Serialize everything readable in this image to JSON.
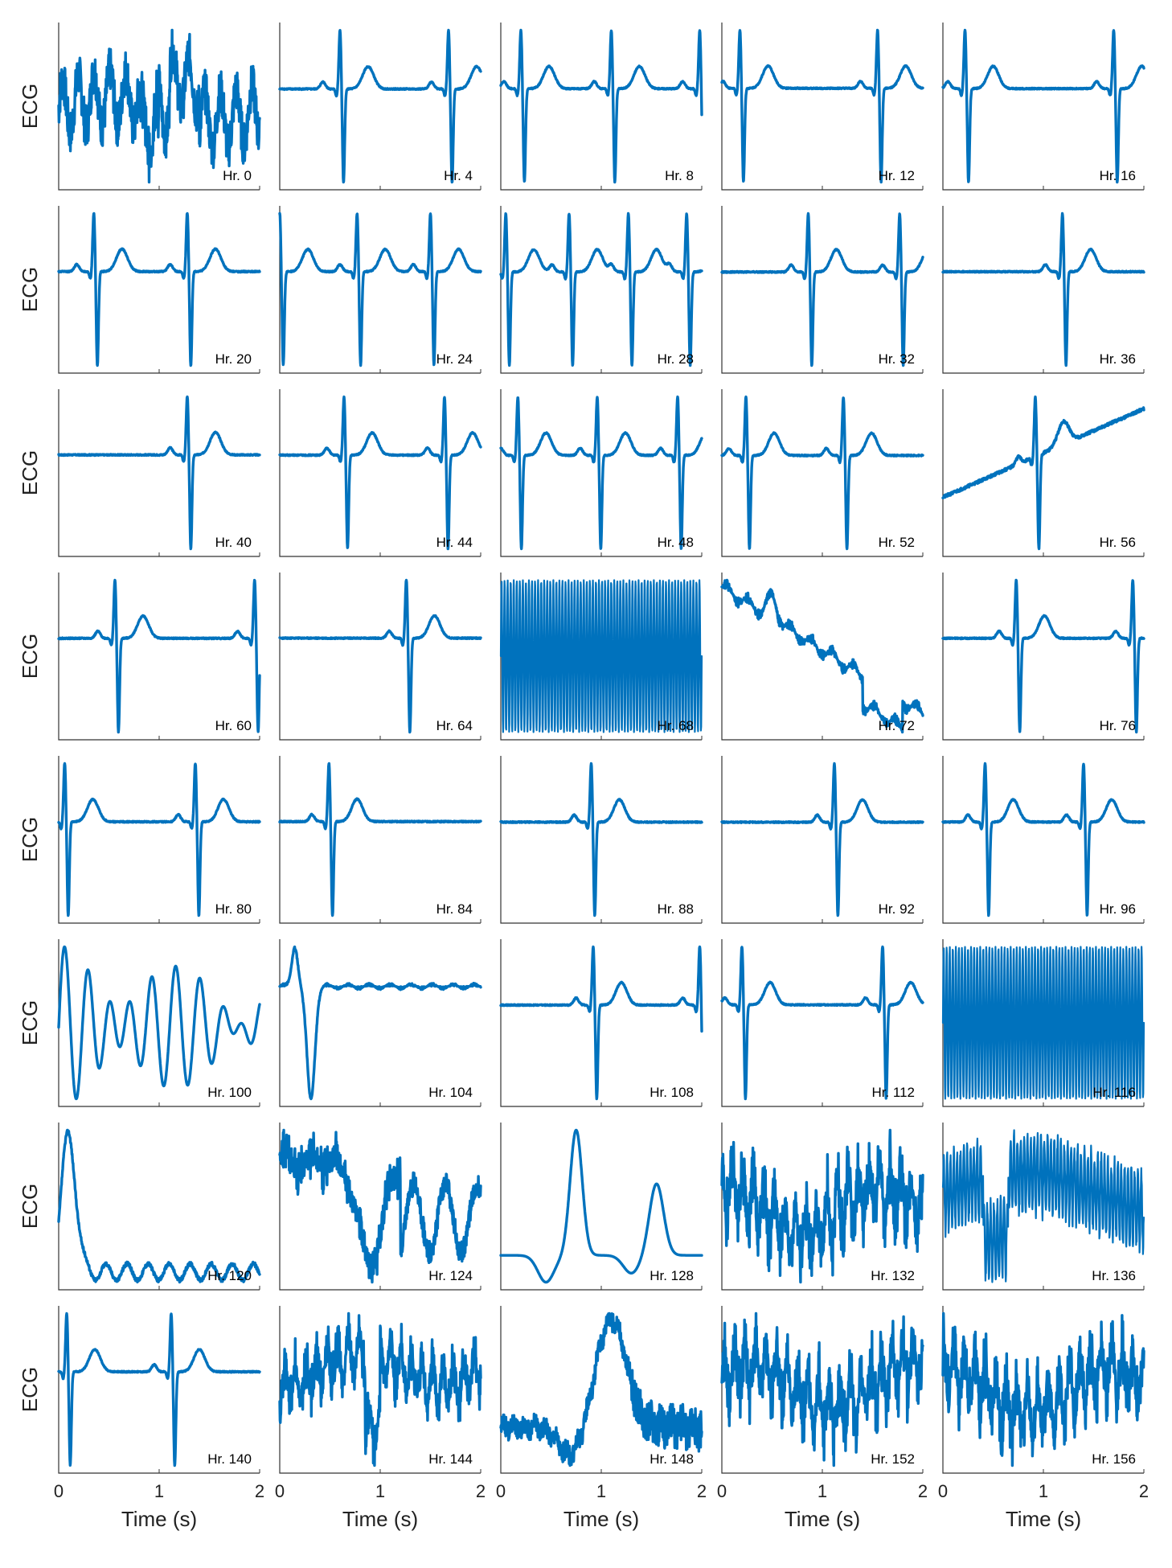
{
  "chart_data": {
    "type": "line",
    "grid": false,
    "colors": {
      "trace": "#0072bd",
      "axes": "#333333"
    },
    "ylabel": "ECG",
    "xlabel": "Time (s)",
    "xlim": [
      0,
      2
    ],
    "xticks": [
      0,
      1,
      2
    ],
    "xtick_labels": [
      "0",
      "1",
      "2"
    ],
    "rows": 8,
    "cols": 5,
    "panels": [
      {
        "label": "Hr. 0",
        "shape": "noise",
        "beats": []
      },
      {
        "label": "Hr. 4",
        "shape": "beats",
        "beats": [
          0.6,
          1.68
        ]
      },
      {
        "label": "Hr. 8",
        "shape": "beats",
        "beats": [
          0.2,
          1.1,
          1.98
        ]
      },
      {
        "label": "Hr. 12",
        "shape": "beats",
        "beats": [
          0.18,
          1.55
        ]
      },
      {
        "label": "Hr. 16",
        "shape": "beats",
        "beats": [
          0.22,
          1.7
        ]
      },
      {
        "label": "Hr. 20",
        "shape": "beats",
        "beats": [
          0.35,
          1.28
        ]
      },
      {
        "label": "Hr. 24",
        "shape": "beats",
        "beats": [
          0.0,
          0.77,
          1.5
        ]
      },
      {
        "label": "Hr. 28",
        "shape": "beats",
        "beats": [
          0.05,
          0.68,
          1.27,
          1.85
        ]
      },
      {
        "label": "Hr. 32",
        "shape": "beats",
        "beats": [
          0.86,
          1.77
        ]
      },
      {
        "label": "Hr. 36",
        "shape": "beats",
        "beats": [
          1.19
        ]
      },
      {
        "label": "Hr. 40",
        "shape": "beats",
        "beats": [
          1.28
        ]
      },
      {
        "label": "Hr. 44",
        "shape": "beats",
        "beats": [
          0.64,
          1.64
        ]
      },
      {
        "label": "Hr. 48",
        "shape": "beats",
        "beats": [
          0.17,
          0.96,
          1.76
        ]
      },
      {
        "label": "Hr. 52",
        "shape": "beats",
        "beats": [
          0.24,
          1.21
        ]
      },
      {
        "label": "Hr. 56",
        "shape": "drift",
        "beats": [
          0.92
        ]
      },
      {
        "label": "Hr. 60",
        "shape": "beats",
        "beats": [
          0.56,
          1.95
        ]
      },
      {
        "label": "Hr. 64",
        "shape": "beats",
        "beats": [
          1.26
        ]
      },
      {
        "label": "Hr. 68",
        "shape": "dense",
        "beats": []
      },
      {
        "label": "Hr. 72",
        "shape": "artifact",
        "beats": []
      },
      {
        "label": "Hr. 76",
        "shape": "beats",
        "beats": [
          0.73,
          1.89
        ]
      },
      {
        "label": "Hr. 80",
        "shape": "beats",
        "beats": [
          0.06,
          1.36
        ]
      },
      {
        "label": "Hr. 84",
        "shape": "beats",
        "beats": [
          0.49
        ]
      },
      {
        "label": "Hr. 88",
        "shape": "beats",
        "beats": [
          0.9
        ]
      },
      {
        "label": "Hr. 92",
        "shape": "beats",
        "beats": [
          1.12
        ]
      },
      {
        "label": "Hr. 96",
        "shape": "beats",
        "beats": [
          0.42,
          1.4
        ]
      },
      {
        "label": "Hr. 100",
        "shape": "wobble",
        "beats": []
      },
      {
        "label": "Hr. 104",
        "shape": "single",
        "beats": [
          0.27
        ]
      },
      {
        "label": "Hr. 108",
        "shape": "beats",
        "beats": [
          0.92,
          1.98
        ]
      },
      {
        "label": "Hr. 112",
        "shape": "beats",
        "beats": [
          0.2,
          1.6
        ]
      },
      {
        "label": "Hr. 116",
        "shape": "dense",
        "beats": []
      },
      {
        "label": "Hr. 120",
        "shape": "spike",
        "beats": []
      },
      {
        "label": "Hr. 124",
        "shape": "noise2",
        "beats": []
      },
      {
        "label": "Hr. 128",
        "shape": "bumps",
        "beats": []
      },
      {
        "label": "Hr. 132",
        "shape": "noise3",
        "beats": []
      },
      {
        "label": "Hr. 136",
        "shape": "dense2",
        "beats": []
      },
      {
        "label": "Hr. 140",
        "shape": "beats",
        "beats": [
          0.08,
          1.12
        ]
      },
      {
        "label": "Hr. 144",
        "shape": "noise3",
        "beats": []
      },
      {
        "label": "Hr. 148",
        "shape": "hump",
        "beats": []
      },
      {
        "label": "Hr. 152",
        "shape": "noise3",
        "beats": []
      },
      {
        "label": "Hr. 156",
        "shape": "noise3",
        "beats": []
      }
    ]
  }
}
